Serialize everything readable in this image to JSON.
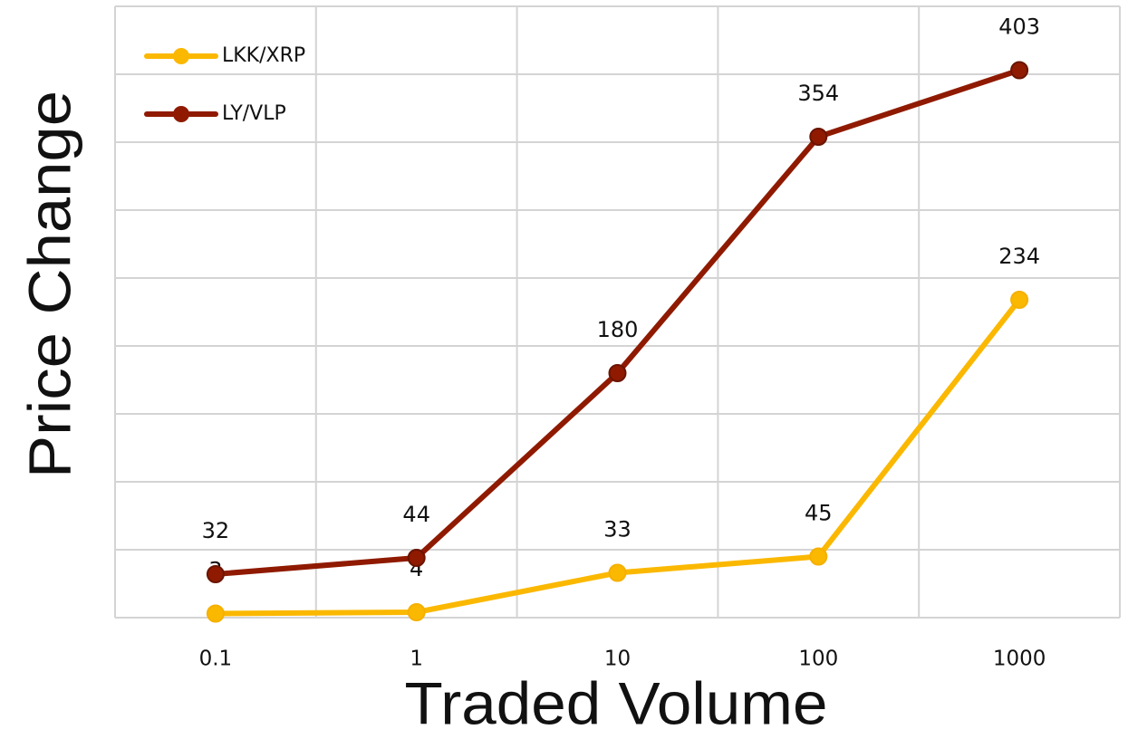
{
  "chart_data": {
    "type": "line",
    "x_label": "Traded Volume",
    "y_label": "Price Change",
    "categories": [
      "0.1",
      "1",
      "10",
      "100",
      "1000"
    ],
    "series": [
      {
        "name": "LKK/XRP",
        "color": "#fbb800",
        "values": [
          3,
          4,
          33,
          45,
          234
        ]
      },
      {
        "name": "LY/VLP",
        "color": "#8f1a00",
        "values": [
          32,
          44,
          180,
          354,
          403
        ]
      }
    ],
    "ylim": [
      0,
      450
    ],
    "yticks": [
      0,
      50,
      100,
      150,
      200,
      250,
      300,
      350,
      400,
      450
    ],
    "grid": true,
    "legend": "upper left"
  }
}
